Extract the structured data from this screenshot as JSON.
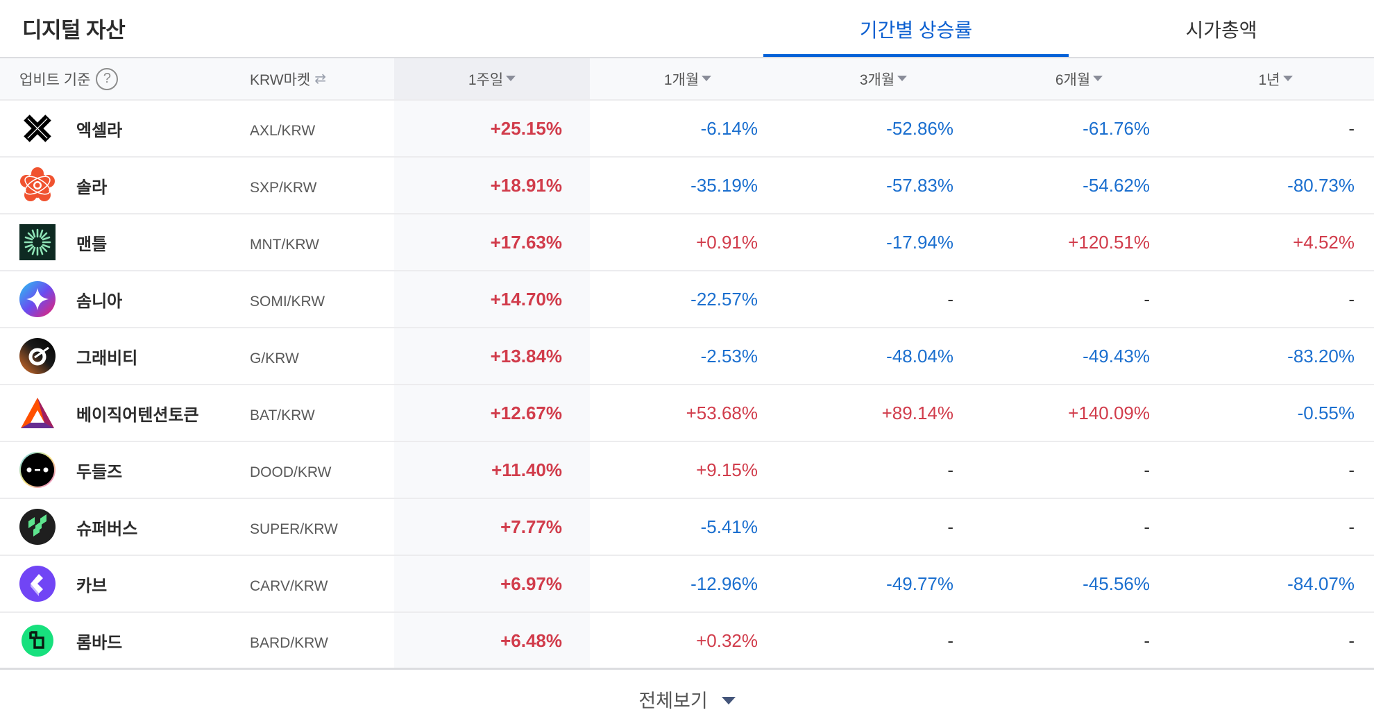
{
  "header": {
    "title": "디지털 자산",
    "tabs": [
      {
        "label": "기간별 상승률",
        "active": true
      },
      {
        "label": "시가총액",
        "active": false
      }
    ]
  },
  "table": {
    "columns": {
      "basis": "업비트 기준",
      "help_icon": "?",
      "market": "KRW마켓",
      "swap_icon": "⇄",
      "periods": [
        "1주일",
        "1개월",
        "3개월",
        "6개월",
        "1년"
      ]
    },
    "sorted_period": "1주일",
    "rows": [
      {
        "name": "엑셀라",
        "pair": "AXL/KRW",
        "icon": "axelar-icon",
        "values": [
          "+25.15%",
          "-6.14%",
          "-52.86%",
          "-61.76%",
          "-"
        ]
      },
      {
        "name": "솔라",
        "pair": "SXP/KRW",
        "icon": "solar-icon",
        "values": [
          "+18.91%",
          "-35.19%",
          "-57.83%",
          "-54.62%",
          "-80.73%"
        ]
      },
      {
        "name": "맨틀",
        "pair": "MNT/KRW",
        "icon": "mantle-icon",
        "values": [
          "+17.63%",
          "+0.91%",
          "-17.94%",
          "+120.51%",
          "+4.52%"
        ]
      },
      {
        "name": "솜니아",
        "pair": "SOMI/KRW",
        "icon": "somnia-icon",
        "values": [
          "+14.70%",
          "-22.57%",
          "-",
          "-",
          "-"
        ]
      },
      {
        "name": "그래비티",
        "pair": "G/KRW",
        "icon": "gravity-icon",
        "values": [
          "+13.84%",
          "-2.53%",
          "-48.04%",
          "-49.43%",
          "-83.20%"
        ]
      },
      {
        "name": "베이직어텐션토큰",
        "pair": "BAT/KRW",
        "icon": "bat-icon",
        "values": [
          "+12.67%",
          "+53.68%",
          "+89.14%",
          "+140.09%",
          "-0.55%"
        ]
      },
      {
        "name": "두들즈",
        "pair": "DOOD/KRW",
        "icon": "doodles-icon",
        "values": [
          "+11.40%",
          "+9.15%",
          "-",
          "-",
          "-"
        ]
      },
      {
        "name": "슈퍼버스",
        "pair": "SUPER/KRW",
        "icon": "superverse-icon",
        "values": [
          "+7.77%",
          "-5.41%",
          "-",
          "-",
          "-"
        ]
      },
      {
        "name": "카브",
        "pair": "CARV/KRW",
        "icon": "carv-icon",
        "values": [
          "+6.97%",
          "-12.96%",
          "-49.77%",
          "-45.56%",
          "-84.07%"
        ]
      },
      {
        "name": "롬바드",
        "pair": "BARD/KRW",
        "icon": "lombard-icon",
        "values": [
          "+6.48%",
          "+0.32%",
          "-",
          "-",
          "-"
        ]
      }
    ]
  },
  "footer": {
    "view_all": "전체보기"
  },
  "colors": {
    "accent": "#0561d7",
    "rise": "#d13c4b",
    "fall": "#1b6fcf",
    "header_bg": "#f8f9fb"
  }
}
